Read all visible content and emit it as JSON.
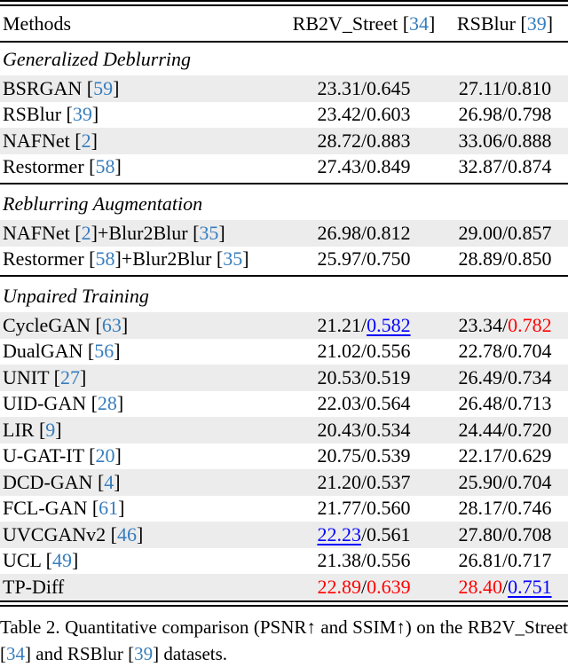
{
  "colors": {
    "citation_blue": "#367dbd",
    "best_red": "#ff0000",
    "second_best_blue": "#0000ff",
    "row_shade_gray": "#ececec",
    "text_black": "#000000"
  },
  "header": {
    "methods": [
      {
        "text": "Methods"
      }
    ],
    "col1": [
      {
        "text": "RB2V_Street ["
      },
      {
        "text": "34",
        "style": "cite"
      },
      {
        "text": "]"
      }
    ],
    "col2": [
      {
        "text": "RSBlur ["
      },
      {
        "text": "39",
        "style": "cite"
      },
      {
        "text": "]"
      }
    ]
  },
  "sections": [
    {
      "title": "Generalized Deblurring",
      "rows": [
        {
          "method": [
            {
              "text": "BSRGAN ["
            },
            {
              "text": "59",
              "style": "cite"
            },
            {
              "text": "]"
            }
          ],
          "col1": [
            {
              "text": "23.31/0.645"
            }
          ],
          "col2": [
            {
              "text": "27.11/0.810"
            }
          ]
        },
        {
          "method": [
            {
              "text": "RSBlur ["
            },
            {
              "text": "39",
              "style": "cite"
            },
            {
              "text": "]"
            }
          ],
          "col1": [
            {
              "text": "23.42/0.603"
            }
          ],
          "col2": [
            {
              "text": "26.98/0.798"
            }
          ]
        },
        {
          "method": [
            {
              "text": "NAFNet ["
            },
            {
              "text": "2",
              "style": "cite"
            },
            {
              "text": "]"
            }
          ],
          "col1": [
            {
              "text": "28.72/0.883"
            }
          ],
          "col2": [
            {
              "text": "33.06/0.888"
            }
          ]
        },
        {
          "method": [
            {
              "text": "Restormer ["
            },
            {
              "text": "58",
              "style": "cite"
            },
            {
              "text": "]"
            }
          ],
          "col1": [
            {
              "text": "27.43/0.849"
            }
          ],
          "col2": [
            {
              "text": "32.87/0.874"
            }
          ]
        }
      ]
    },
    {
      "title": "Reblurring Augmentation",
      "rows": [
        {
          "method": [
            {
              "text": "NAFNet ["
            },
            {
              "text": "2",
              "style": "cite"
            },
            {
              "text": "]+Blur2Blur ["
            },
            {
              "text": "35",
              "style": "cite"
            },
            {
              "text": "]"
            }
          ],
          "col1": [
            {
              "text": "26.98/0.812"
            }
          ],
          "col2": [
            {
              "text": "29.00/0.857"
            }
          ]
        },
        {
          "method": [
            {
              "text": "Restormer ["
            },
            {
              "text": "58",
              "style": "cite"
            },
            {
              "text": "]+Blur2Blur ["
            },
            {
              "text": "35",
              "style": "cite"
            },
            {
              "text": "]"
            }
          ],
          "col1": [
            {
              "text": "25.97/0.750"
            }
          ],
          "col2": [
            {
              "text": "28.89/0.850"
            }
          ]
        }
      ]
    },
    {
      "title": "Unpaired Training",
      "rows": [
        {
          "method": [
            {
              "text": "CycleGAN ["
            },
            {
              "text": "63",
              "style": "cite"
            },
            {
              "text": "]"
            }
          ],
          "col1": [
            {
              "text": "21.21/"
            },
            {
              "text": "0.582",
              "style": "second"
            }
          ],
          "col2": [
            {
              "text": "23.34/"
            },
            {
              "text": "0.782",
              "style": "best"
            }
          ]
        },
        {
          "method": [
            {
              "text": "DualGAN ["
            },
            {
              "text": "56",
              "style": "cite"
            },
            {
              "text": "]"
            }
          ],
          "col1": [
            {
              "text": "21.02/0.556"
            }
          ],
          "col2": [
            {
              "text": "22.78/0.704"
            }
          ]
        },
        {
          "method": [
            {
              "text": "UNIT ["
            },
            {
              "text": "27",
              "style": "cite"
            },
            {
              "text": "]"
            }
          ],
          "col1": [
            {
              "text": "20.53/0.519"
            }
          ],
          "col2": [
            {
              "text": "26.49/0.734"
            }
          ]
        },
        {
          "method": [
            {
              "text": "UID-GAN ["
            },
            {
              "text": "28",
              "style": "cite"
            },
            {
              "text": "]"
            }
          ],
          "col1": [
            {
              "text": "22.03/0.564"
            }
          ],
          "col2": [
            {
              "text": "26.48/0.713"
            }
          ]
        },
        {
          "method": [
            {
              "text": "LIR ["
            },
            {
              "text": "9",
              "style": "cite"
            },
            {
              "text": "]"
            }
          ],
          "col1": [
            {
              "text": "20.43/0.534"
            }
          ],
          "col2": [
            {
              "text": "24.44/0.720"
            }
          ]
        },
        {
          "method": [
            {
              "text": "U-GAT-IT ["
            },
            {
              "text": "20",
              "style": "cite"
            },
            {
              "text": "]"
            }
          ],
          "col1": [
            {
              "text": "20.75/0.539"
            }
          ],
          "col2": [
            {
              "text": "22.17/0.629"
            }
          ]
        },
        {
          "method": [
            {
              "text": "DCD-GAN ["
            },
            {
              "text": "4",
              "style": "cite"
            },
            {
              "text": "]"
            }
          ],
          "col1": [
            {
              "text": "21.20/0.537"
            }
          ],
          "col2": [
            {
              "text": "25.90/0.704"
            }
          ]
        },
        {
          "method": [
            {
              "text": "FCL-GAN ["
            },
            {
              "text": "61",
              "style": "cite"
            },
            {
              "text": "]"
            }
          ],
          "col1": [
            {
              "text": "21.77/0.560"
            }
          ],
          "col2": [
            {
              "text": "28.17/0.746"
            }
          ]
        },
        {
          "method": [
            {
              "text": "UVCGANv2 ["
            },
            {
              "text": "46",
              "style": "cite"
            },
            {
              "text": "]"
            }
          ],
          "col1": [
            {
              "text": "22.23",
              "style": "second"
            },
            {
              "text": "/0.561"
            }
          ],
          "col2": [
            {
              "text": "27.80/0.708"
            }
          ]
        },
        {
          "method": [
            {
              "text": "UCL ["
            },
            {
              "text": "49",
              "style": "cite"
            },
            {
              "text": "]"
            }
          ],
          "col1": [
            {
              "text": "21.38/0.556"
            }
          ],
          "col2": [
            {
              "text": "26.81/0.717"
            }
          ]
        },
        {
          "method": [
            {
              "text": "TP-Diff"
            }
          ],
          "col1": [
            {
              "text": "22.89",
              "style": "best"
            },
            {
              "text": "/"
            },
            {
              "text": "0.639",
              "style": "best"
            }
          ],
          "col2": [
            {
              "text": "28.40",
              "style": "best"
            },
            {
              "text": "/"
            },
            {
              "text": "0.751",
              "style": "second"
            }
          ]
        }
      ]
    }
  ],
  "caption": {
    "segments": [
      {
        "text": "Table 2.  Quantitative comparison (PSNR↑ and SSIM↑) on the RB2V_Street ["
      },
      {
        "text": "34",
        "style": "cite"
      },
      {
        "text": "] and RSBlur ["
      },
      {
        "text": "39",
        "style": "cite"
      },
      {
        "text": "] datasets."
      }
    ]
  }
}
